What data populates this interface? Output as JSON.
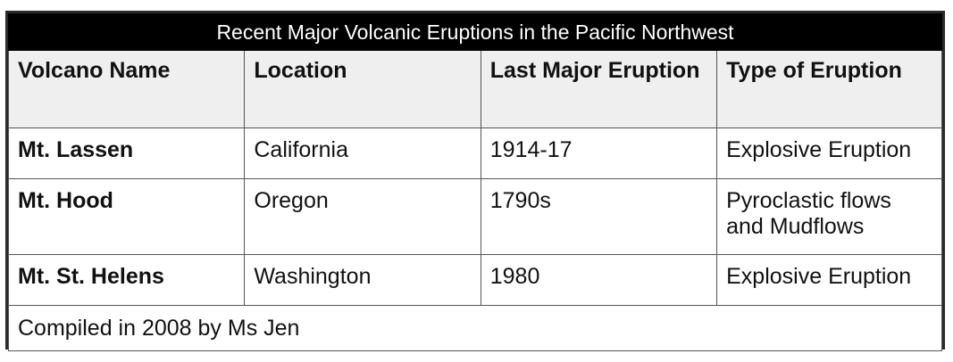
{
  "table": {
    "title": "Recent Major Volcanic Eruptions in the Pacific Northwest",
    "columns": [
      "Volcano Name",
      "Location",
      "Last Major Eruption",
      "Type of Eruption"
    ],
    "rows": [
      {
        "name": "Mt. Lassen",
        "location": "California",
        "last_eruption": "1914-17",
        "type": "Explosive Eruption"
      },
      {
        "name": "Mt. Hood",
        "location": "Oregon",
        "last_eruption": "1790s",
        "type": "Pyroclastic flows and Mudflows"
      },
      {
        "name": "Mt. St. Helens",
        "location": "Washington",
        "last_eruption": "1980",
        "type": "Explosive Eruption"
      }
    ],
    "footer": "Compiled in 2008 by Ms Jen"
  },
  "colors": {
    "title_background": "#000000",
    "title_text": "#ffffff",
    "header_background": "#efefef",
    "border": "#555555"
  }
}
